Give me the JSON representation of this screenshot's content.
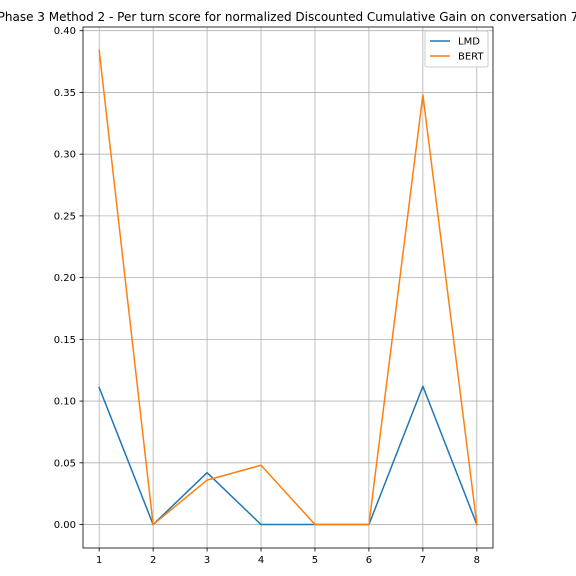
{
  "chart_data": {
    "type": "line",
    "title": "Phase 3 Method 2 - Per turn score for normalized Discounted Cumulative Gain on conversation 7",
    "xlabel": "",
    "ylabel": "",
    "x": [
      1,
      2,
      3,
      4,
      5,
      6,
      7,
      8
    ],
    "xlim": [
      0.7,
      8.3
    ],
    "ylim": [
      -0.019,
      0.403
    ],
    "xticks": [
      1,
      2,
      3,
      4,
      5,
      6,
      7,
      8
    ],
    "yticks": [
      0.0,
      0.05,
      0.1,
      0.15,
      0.2,
      0.25,
      0.3,
      0.35,
      0.4
    ],
    "ytick_labels": [
      "0.00",
      "0.05",
      "0.10",
      "0.15",
      "0.20",
      "0.25",
      "0.30",
      "0.35",
      "0.40"
    ],
    "grid": true,
    "legend_position": "top-right",
    "series": [
      {
        "name": "LMD",
        "color": "#1f77b4",
        "values": [
          0.111,
          0.0,
          0.042,
          0.0,
          0.0,
          0.0,
          0.112,
          0.0
        ]
      },
      {
        "name": "BERT",
        "color": "#ff7f0e",
        "values": [
          0.384,
          0.0,
          0.036,
          0.048,
          0.0,
          0.0,
          0.348,
          0.0
        ]
      }
    ]
  }
}
